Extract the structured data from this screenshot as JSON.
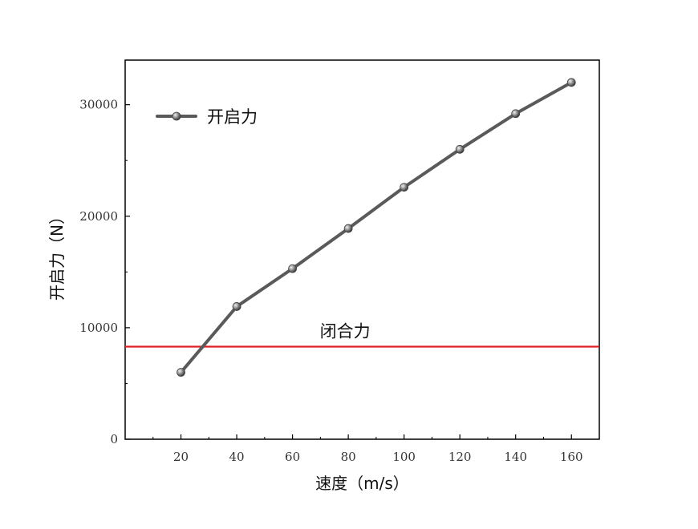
{
  "chart_data": {
    "type": "line",
    "title": "",
    "xlabel": "速度（m/s）",
    "ylabel": "开启力（N）",
    "xlim": [
      0,
      170
    ],
    "ylim": [
      0,
      34000
    ],
    "x_ticks": [
      20,
      40,
      60,
      80,
      100,
      120,
      140,
      160
    ],
    "y_ticks": [
      0,
      10000,
      20000,
      30000
    ],
    "x_tick_labels": [
      "20",
      "40",
      "60",
      "80",
      "100",
      "120",
      "140",
      "160"
    ],
    "y_tick_labels": [
      "0",
      "10000",
      "20000",
      "30000"
    ],
    "grid": false,
    "legend_position": "top-left",
    "series": [
      {
        "name": "开启力",
        "color": "#5a5a5a",
        "marker": "circle",
        "x": [
          20,
          40,
          60,
          80,
          100,
          120,
          140,
          160
        ],
        "y": [
          6000,
          11900,
          15300,
          18900,
          22600,
          26000,
          29200,
          32000
        ]
      }
    ],
    "reference_lines": [
      {
        "orientation": "horizontal",
        "y": 8300,
        "color": "#e02020",
        "label": "闭合力"
      }
    ]
  }
}
